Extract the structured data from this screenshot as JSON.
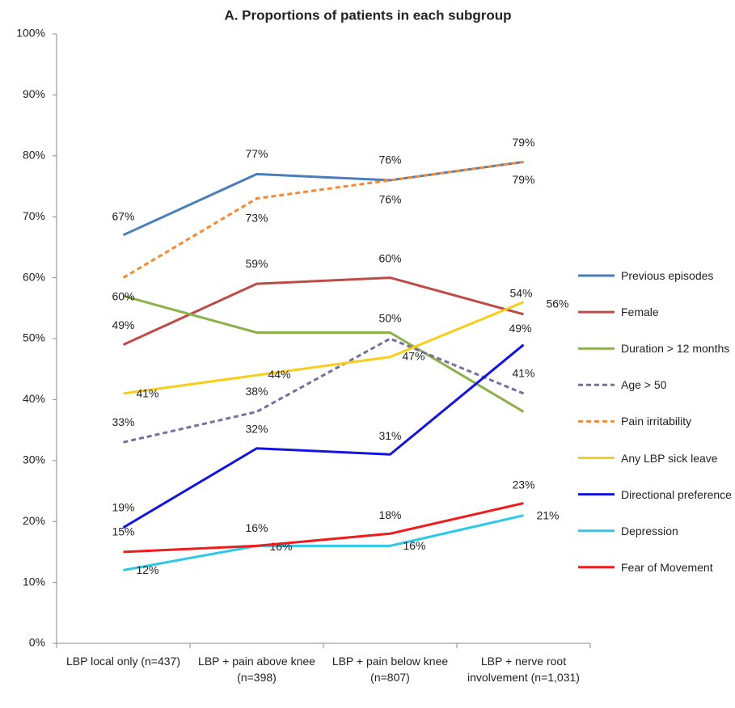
{
  "chart_data": {
    "type": "line",
    "title": "A. Proportions of patients in each subgroup",
    "categories": [
      "LBP local only (n=437)",
      "LBP + pain above knee (n=398)",
      "LBP + pain below knee (n=807)",
      "LBP + nerve root involvement (n=1,031)"
    ],
    "ylim": [
      0,
      100
    ],
    "yticks": [
      {
        "value": 0,
        "label": "0%"
      },
      {
        "value": 10,
        "label": "10%"
      },
      {
        "value": 20,
        "label": "20%"
      },
      {
        "value": 30,
        "label": "30%"
      },
      {
        "value": 40,
        "label": "40%"
      },
      {
        "value": 50,
        "label": "50%"
      },
      {
        "value": 60,
        "label": "60%"
      },
      {
        "value": 70,
        "label": "70%"
      },
      {
        "value": 80,
        "label": "80%"
      },
      {
        "value": 90,
        "label": "90%"
      },
      {
        "value": 100,
        "label": "100%"
      }
    ],
    "legend": "right",
    "series": [
      {
        "name": "Previous episodes",
        "color": "#4a7ebb",
        "values": [
          67,
          77,
          76,
          79
        ],
        "value_labels": [
          "67%",
          "77%",
          "76%",
          "79%"
        ]
      },
      {
        "name": "Female",
        "color": "#be4b48",
        "values": [
          49,
          59,
          60,
          54
        ],
        "value_labels": [
          "49%",
          "59%",
          "60%",
          "54%"
        ]
      },
      {
        "name": "Duration > 12 months",
        "color": "#8cb04a",
        "values": [
          57,
          51,
          51,
          38
        ]
      },
      {
        "name": "Age > 50",
        "color": "#7470a0",
        "dashed": true,
        "values": [
          33,
          38,
          50,
          41
        ],
        "value_labels": [
          "33%",
          "38%",
          "50%",
          "41%"
        ]
      },
      {
        "name": "Pain irritability",
        "color": "#f58a34",
        "dashed": true,
        "values": [
          60,
          73,
          76,
          79
        ],
        "value_labels": [
          "60%",
          "73%",
          "76%",
          "79%"
        ]
      },
      {
        "name": "Any LBP sick leave",
        "color": "#f7cf1a",
        "values": [
          41,
          44,
          47,
          56
        ],
        "value_labels": [
          "41%",
          "44%",
          "47%",
          "56%"
        ]
      },
      {
        "name": "Directional preference",
        "color": "#1414e0",
        "values": [
          19,
          32,
          31,
          49
        ],
        "value_labels": [
          "19%",
          "32%",
          "31%",
          "49%"
        ]
      },
      {
        "name": "Depression",
        "color": "#2cc8e8",
        "values": [
          12,
          16,
          16,
          21
        ],
        "value_labels": [
          "12%",
          "16%",
          "16%",
          "21%"
        ]
      },
      {
        "name": "Fear of Movement",
        "color": "#ee1c1c",
        "values": [
          15,
          16,
          18,
          23
        ],
        "value_labels": [
          "15%",
          "16%",
          "18%",
          "23%"
        ]
      }
    ]
  }
}
